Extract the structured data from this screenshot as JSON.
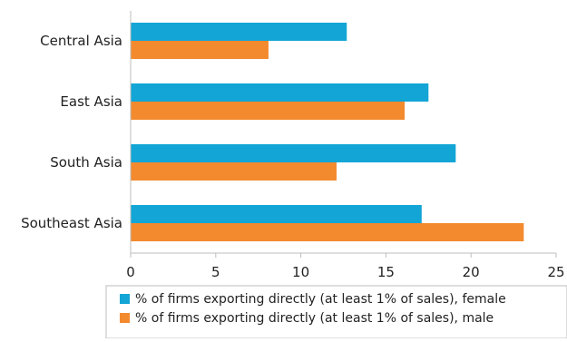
{
  "chart_data": {
    "type": "bar",
    "orientation": "horizontal",
    "title": "",
    "xlabel": "",
    "ylabel": "",
    "categories": [
      "Central Asia",
      "East Asia",
      "South Asia",
      "Southeast Asia"
    ],
    "series": [
      {
        "name": "% of firms exporting directly (at least 1% of sales), female",
        "color": "#12a5d6",
        "values": [
          12.7,
          17.5,
          19.1,
          17.1
        ]
      },
      {
        "name": "% of firms exporting directly (at least 1% of sales), male",
        "color": "#f38a2e",
        "values": [
          8.1,
          16.1,
          12.1,
          23.1
        ]
      }
    ],
    "xlim": [
      0,
      25
    ],
    "xticks": [
      "0",
      "5",
      "10",
      "15",
      "20",
      "25"
    ],
    "grid": false,
    "legend_position": "bottom"
  }
}
